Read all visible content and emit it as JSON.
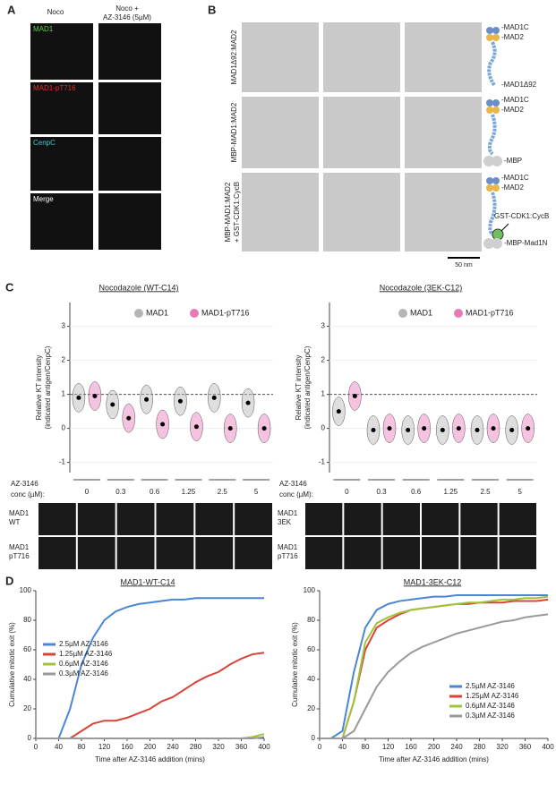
{
  "panel_a": {
    "label": "A",
    "columns": [
      "Noco",
      "Noco +"
    ],
    "column_2_line_2": "AZ-3146 (5µM)",
    "rows": [
      "MAD1",
      "MAD1-pT716",
      "CenpC",
      "Merge"
    ]
  },
  "panel_b": {
    "label": "B",
    "rows": [
      "MAD1Δ92:MAD2",
      "MBP-MAD1:MAD2",
      "MBP-MAD1:MAD2"
    ],
    "row_3_line_2": "+ GST-CDK1:CycB",
    "scale_bar": "50 nm",
    "schematic_1": [
      "-MAD1C",
      "-MAD2",
      "-MAD1Δ92"
    ],
    "schematic_2": [
      "-MAD1C",
      "-MAD2",
      "-MBP"
    ],
    "schematic_3": [
      "-MAD1C",
      "-MAD2",
      "GST-CDK1:CycB",
      "-MBP-Mad1N"
    ]
  },
  "panel_c": {
    "label": "C"
  },
  "panel_d": {
    "label": "D"
  },
  "chart_data": [
    {
      "type": "violin",
      "title": "Nocodazole (WT-C14)",
      "ylabel": [
        "Relative KT intensity",
        "(indicated antigen/CenpC)"
      ],
      "xlabel": [
        "AZ-3146",
        "conc (µM):"
      ],
      "categories": [
        "0",
        "0.3",
        "0.6",
        "1.25",
        "2.5",
        "5"
      ],
      "ylim": [
        -1.3,
        3.7
      ],
      "yticks": [
        -1,
        0,
        1,
        2,
        3
      ],
      "reference_line": 1,
      "series": [
        {
          "name": "MAD1",
          "color": "#b5b5b5",
          "values": [
            0.9,
            0.7,
            0.85,
            0.8,
            0.9,
            0.75
          ]
        },
        {
          "name": "MAD1-pT716",
          "color": "#e87ab8",
          "values": [
            0.95,
            0.3,
            0.12,
            0.05,
            0.0,
            0.0
          ]
        }
      ],
      "strip_rows": [
        [
          "MAD1",
          "WT"
        ],
        [
          "MAD1",
          "pT716"
        ]
      ]
    },
    {
      "type": "violin",
      "title": "Nocodazole (3EK-C12)",
      "ylabel": [
        "Relative KT intensity",
        "(indicated antigen/CenpC)"
      ],
      "xlabel": [
        "AZ-3146",
        "conc (µM):"
      ],
      "categories": [
        "0",
        "0.3",
        "0.6",
        "1.25",
        "2.5",
        "5"
      ],
      "ylim": [
        -1.3,
        3.7
      ],
      "yticks": [
        -1,
        0,
        1,
        2,
        3
      ],
      "reference_line": 1,
      "series": [
        {
          "name": "MAD1",
          "color": "#b5b5b5",
          "values": [
            0.5,
            -0.05,
            -0.05,
            -0.05,
            -0.05,
            -0.05
          ]
        },
        {
          "name": "MAD1-pT716",
          "color": "#e87ab8",
          "values": [
            0.95,
            0.0,
            0.0,
            0.0,
            0.0,
            0.0
          ]
        }
      ],
      "strip_rows": [
        [
          "MAD1",
          "3EK"
        ],
        [
          "MAD1",
          "pT716"
        ]
      ]
    },
    {
      "type": "line",
      "title": "MAD1-WT-C14",
      "ylabel": "Cumulative mitotic exit (%)",
      "xlabel": "Time after AZ-3146 addition (mins)",
      "legend": "middle-left",
      "x": [
        0,
        20,
        40,
        60,
        80,
        100,
        120,
        140,
        160,
        180,
        200,
        220,
        240,
        260,
        280,
        300,
        320,
        340,
        360,
        380,
        400
      ],
      "xlim": [
        0,
        400
      ],
      "xticks": [
        0,
        40,
        80,
        120,
        160,
        200,
        240,
        280,
        320,
        360,
        400
      ],
      "ylim": [
        0,
        100
      ],
      "yticks": [
        0,
        20,
        40,
        60,
        80,
        100
      ],
      "series": [
        {
          "name": "2.5µM AZ-3146",
          "color": "#4a86d4",
          "values": [
            0,
            0,
            0,
            20,
            50,
            68,
            80,
            86,
            89,
            91,
            92,
            93,
            94,
            94,
            95,
            95,
            95,
            95,
            95,
            95,
            95
          ]
        },
        {
          "name": "1.25µM AZ-3146",
          "color": "#d9443a",
          "values": [
            0,
            0,
            0,
            0,
            5,
            10,
            12,
            12,
            14,
            17,
            20,
            25,
            28,
            33,
            38,
            42,
            45,
            50,
            54,
            57,
            58
          ]
        },
        {
          "name": "0.6µM AZ-3146",
          "color": "#9fc43c",
          "values": [
            0,
            0,
            0,
            0,
            0,
            0,
            0,
            0,
            0,
            0,
            0,
            0,
            0,
            0,
            0,
            0,
            0,
            0,
            0,
            1,
            3
          ]
        },
        {
          "name": "0.3µM AZ-3146",
          "color": "#9a9a9a",
          "values": [
            0,
            0,
            0,
            0,
            0,
            0,
            0,
            0,
            0,
            0,
            0,
            0,
            0,
            0,
            0,
            0,
            0,
            0,
            0,
            0,
            1
          ]
        }
      ]
    },
    {
      "type": "line",
      "title": "MAD1-3EK-C12",
      "ylabel": "Cumulative mitotic exit (%)",
      "xlabel": "Time after AZ-3146 addition (mins)",
      "legend": "lower-right",
      "x": [
        0,
        20,
        40,
        60,
        80,
        100,
        120,
        140,
        160,
        180,
        200,
        220,
        240,
        260,
        280,
        300,
        320,
        340,
        360,
        380,
        400
      ],
      "xlim": [
        0,
        400
      ],
      "xticks": [
        0,
        40,
        80,
        120,
        160,
        200,
        240,
        280,
        320,
        360,
        400
      ],
      "ylim": [
        0,
        100
      ],
      "yticks": [
        0,
        20,
        40,
        60,
        80,
        100
      ],
      "series": [
        {
          "name": "2.5µM AZ-3146",
          "color": "#4a86d4",
          "values": [
            0,
            0,
            5,
            45,
            75,
            87,
            91,
            93,
            94,
            95,
            96,
            96,
            97,
            97,
            97,
            97,
            97,
            97,
            97,
            97,
            97
          ]
        },
        {
          "name": "1.25µM AZ-3146",
          "color": "#d9443a",
          "values": [
            0,
            0,
            0,
            25,
            60,
            75,
            80,
            84,
            87,
            88,
            89,
            90,
            91,
            91,
            92,
            92,
            92,
            93,
            93,
            93,
            94
          ]
        },
        {
          "name": "0.6µM AZ-3146",
          "color": "#9fc43c",
          "values": [
            0,
            0,
            0,
            25,
            65,
            78,
            82,
            85,
            87,
            88,
            89,
            90,
            91,
            92,
            92,
            93,
            94,
            94,
            95,
            95,
            96
          ]
        },
        {
          "name": "0.3µM AZ-3146",
          "color": "#9a9a9a",
          "values": [
            0,
            0,
            0,
            5,
            20,
            35,
            45,
            52,
            58,
            62,
            65,
            68,
            71,
            73,
            75,
            77,
            79,
            80,
            82,
            83,
            84
          ]
        }
      ]
    }
  ]
}
